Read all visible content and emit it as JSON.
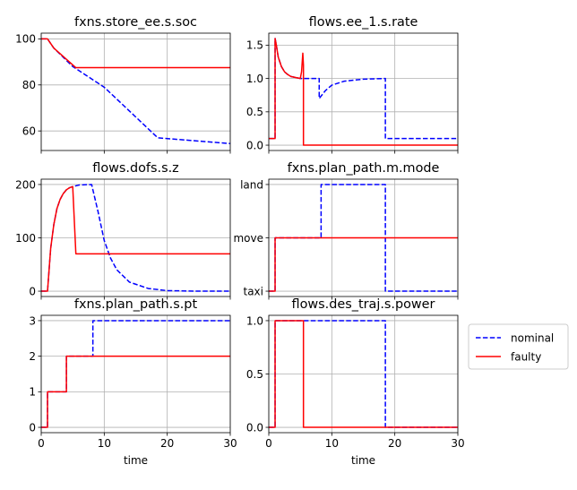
{
  "figure": {
    "background": "#ffffff",
    "series_styles": {
      "nominal": {
        "color": "#0000ff",
        "dash": "dashed"
      },
      "faulty": {
        "color": "#ff0000",
        "dash": "solid"
      }
    },
    "legend": {
      "placement": "right of bottom-right subplot",
      "entries": [
        "nominal",
        "faulty"
      ]
    }
  },
  "chart_data": [
    {
      "type": "line",
      "title": "fxns.store_ee.s.soc",
      "xlabel": "",
      "ylabel": "",
      "xlim": [
        0,
        30
      ],
      "ylim": [
        51.5,
        102.5
      ],
      "xticks": [
        0,
        10,
        20,
        30
      ],
      "xtick_labels_visible": false,
      "yticks": [
        60,
        80,
        100
      ],
      "ytick_labels": [
        "60",
        "80",
        "100"
      ],
      "grid": true,
      "series": [
        {
          "name": "nominal",
          "x": [
            0,
            1,
            2,
            5,
            10,
            18.5,
            30
          ],
          "y": [
            100,
            100,
            96,
            88,
            79,
            57,
            54.5
          ]
        },
        {
          "name": "faulty",
          "x": [
            0,
            1,
            2,
            5.5,
            30
          ],
          "y": [
            100,
            100,
            96,
            87.5,
            87.5
          ]
        }
      ]
    },
    {
      "type": "line",
      "title": "flows.ee_1.s.rate",
      "xlabel": "",
      "ylabel": "",
      "xlim": [
        0,
        30
      ],
      "ylim": [
        -0.08,
        1.68
      ],
      "xticks": [
        0,
        10,
        20,
        30
      ],
      "xtick_labels_visible": false,
      "yticks": [
        0.0,
        0.5,
        1.0,
        1.5
      ],
      "ytick_labels": [
        "0.0",
        "0.5",
        "1.0",
        "1.5"
      ],
      "grid": true,
      "series": [
        {
          "name": "nominal",
          "x": [
            0,
            1,
            1,
            1.2,
            1.5,
            2,
            2.5,
            3,
            3.5,
            4,
            5,
            8,
            8,
            9,
            10,
            12,
            15,
            18.5,
            18.5,
            30
          ],
          "y": [
            0.1,
            0.1,
            1.6,
            1.5,
            1.32,
            1.18,
            1.1,
            1.06,
            1.03,
            1.02,
            1.0,
            1.0,
            0.7,
            0.82,
            0.9,
            0.96,
            0.99,
            1.0,
            0.1,
            0.1
          ]
        },
        {
          "name": "faulty",
          "x": [
            0,
            1,
            1,
            1.2,
            1.5,
            2,
            2.5,
            3,
            3.5,
            4,
            5,
            5.2,
            5.4,
            5.5,
            5.5,
            30
          ],
          "y": [
            0.1,
            0.1,
            1.6,
            1.5,
            1.32,
            1.18,
            1.1,
            1.06,
            1.03,
            1.02,
            1.0,
            1.1,
            1.38,
            1.2,
            0.0,
            0.0
          ]
        }
      ]
    },
    {
      "type": "line",
      "title": "flows.dofs.s.z",
      "xlabel": "",
      "ylabel": "",
      "xlim": [
        0,
        30
      ],
      "ylim": [
        -10,
        210
      ],
      "xticks": [
        0,
        10,
        20,
        30
      ],
      "xtick_labels_visible": false,
      "yticks": [
        0,
        100,
        200
      ],
      "ytick_labels": [
        "0",
        "100",
        "200"
      ],
      "grid": true,
      "series": [
        {
          "name": "nominal",
          "x": [
            0,
            1,
            1.5,
            2,
            2.5,
            3,
            3.5,
            4,
            4.5,
            5,
            6,
            8,
            9,
            10,
            11,
            12,
            14,
            17,
            20,
            25,
            30
          ],
          "y": [
            0,
            0,
            80,
            125,
            155,
            172,
            183,
            190,
            194,
            196,
            199,
            200,
            150,
            95,
            62,
            40,
            17,
            5,
            1,
            0,
            0
          ]
        },
        {
          "name": "faulty",
          "x": [
            0,
            1,
            1.5,
            2,
            2.5,
            3,
            3.5,
            4,
            4.5,
            5,
            5.5,
            30
          ],
          "y": [
            0,
            0,
            80,
            125,
            155,
            172,
            183,
            190,
            194,
            196,
            70,
            70
          ]
        }
      ]
    },
    {
      "type": "line",
      "title": "fxns.plan_path.m.mode",
      "xlabel": "",
      "ylabel": "",
      "xlim": [
        0,
        30
      ],
      "ylim": [
        -0.1,
        2.1
      ],
      "xticks": [
        0,
        10,
        20,
        30
      ],
      "xtick_labels_visible": false,
      "yticks": [
        0,
        1,
        2
      ],
      "ytick_labels": [
        "taxi",
        "move",
        "land"
      ],
      "grid": true,
      "series": [
        {
          "name": "nominal",
          "x": [
            0,
            1,
            1,
            8.3,
            8.3,
            18.5,
            18.5,
            30
          ],
          "y": [
            0,
            0,
            1,
            1,
            2,
            2,
            0,
            0
          ]
        },
        {
          "name": "faulty",
          "x": [
            0,
            1,
            1,
            30
          ],
          "y": [
            0,
            0,
            1,
            1
          ]
        }
      ]
    },
    {
      "type": "line",
      "title": "fxns.plan_path.s.pt",
      "xlabel": "time",
      "ylabel": "",
      "xlim": [
        0,
        30
      ],
      "ylim": [
        -0.15,
        3.15
      ],
      "xticks": [
        0,
        10,
        20,
        30
      ],
      "xtick_labels": [
        "0",
        "10",
        "20",
        "30"
      ],
      "yticks": [
        0,
        1,
        2,
        3
      ],
      "ytick_labels": [
        "0",
        "1",
        "2",
        "3"
      ],
      "grid": true,
      "series": [
        {
          "name": "nominal",
          "x": [
            0,
            1,
            1,
            4,
            4,
            8.2,
            8.2,
            30
          ],
          "y": [
            0,
            0,
            1,
            1,
            2,
            2,
            3,
            3
          ]
        },
        {
          "name": "faulty",
          "x": [
            0,
            1,
            1,
            4,
            4,
            30
          ],
          "y": [
            0,
            0,
            1,
            1,
            2,
            2
          ]
        }
      ]
    },
    {
      "type": "line",
      "title": "flows.des_traj.s.power",
      "xlabel": "time",
      "ylabel": "",
      "xlim": [
        0,
        30
      ],
      "ylim": [
        -0.05,
        1.05
      ],
      "xticks": [
        0,
        10,
        20,
        30
      ],
      "xtick_labels": [
        "0",
        "10",
        "20",
        "30"
      ],
      "yticks": [
        0.0,
        0.5,
        1.0
      ],
      "ytick_labels": [
        "0.0",
        "0.5",
        "1.0"
      ],
      "grid": true,
      "series": [
        {
          "name": "nominal",
          "x": [
            0,
            1,
            1,
            18.5,
            18.5,
            30
          ],
          "y": [
            0,
            0,
            1,
            1,
            0,
            0
          ]
        },
        {
          "name": "faulty",
          "x": [
            0,
            1,
            1,
            5.5,
            5.5,
            30
          ],
          "y": [
            0,
            0,
            1,
            1,
            0,
            0
          ]
        }
      ]
    }
  ]
}
